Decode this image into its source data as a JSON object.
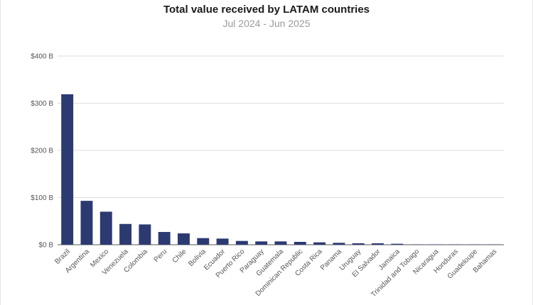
{
  "chart_data": {
    "type": "bar",
    "title": "Total value received by LATAM countries",
    "subtitle": "Jul 2024 - Jun 2025",
    "xlabel": "",
    "ylabel": "",
    "ylim": [
      0,
      400
    ],
    "yticks": [
      0,
      100,
      200,
      300,
      400
    ],
    "ytick_labels": [
      "$0 B",
      "$100 B",
      "$200 B",
      "$300 B",
      "$400 B"
    ],
    "grid": true,
    "bar_color": "#2c3a72",
    "categories": [
      "Brazil",
      "Argentina",
      "Mexico",
      "Venezuela",
      "Colombia",
      "Peru",
      "Chile",
      "Bolivia",
      "Ecuador",
      "Puerto Rico",
      "Paraguay",
      "Guatemala",
      "Dominican Republic",
      "Costa Rica",
      "Panama",
      "Uruguay",
      "El Salvador",
      "Jamaica",
      "Trinidad and Tobago",
      "Nicaragua",
      "Honduras",
      "Guadeloupe",
      "Bahamas"
    ],
    "values": [
      319,
      93,
      70,
      44,
      43,
      27,
      24,
      14,
      13,
      8,
      7,
      7,
      6,
      5,
      4,
      3,
      3,
      2,
      0.5,
      0.4,
      0.4,
      0.3,
      0.2
    ]
  }
}
